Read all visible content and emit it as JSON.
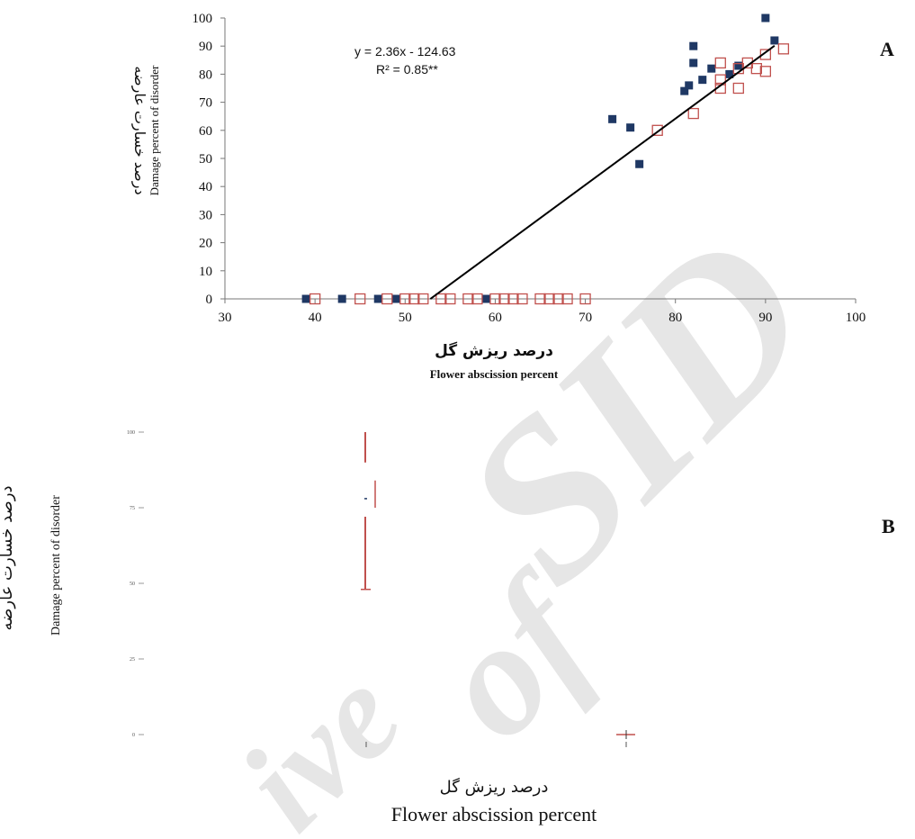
{
  "watermark": {
    "text_sid": "SID",
    "text_of": "of",
    "text_ive": "ive"
  },
  "chart_data": [
    {
      "type": "scatter",
      "panel": "A",
      "title": "",
      "xlabel_fa": "درصد ریزش گل",
      "xlabel_en": "Flower abscission percent",
      "ylabel_fa": "درصد خسارت عارضه",
      "ylabel_en": "Damage percent of disorder",
      "xlim": [
        30,
        100
      ],
      "ylim": [
        0,
        100
      ],
      "xticks": [
        30,
        40,
        50,
        60,
        70,
        80,
        90,
        100
      ],
      "yticks": [
        0,
        10,
        20,
        30,
        40,
        50,
        60,
        70,
        80,
        90,
        100
      ],
      "grid": false,
      "legend": "none",
      "equation": "y = 2.36x - 124.63",
      "r_squared": "R² = 0.85**",
      "trendline": {
        "slope": 2.36,
        "intercept": -124.63,
        "x_start": 52.8,
        "x_end": 91
      },
      "colors": {
        "series1": "#1f3864",
        "series2": "#c0504d",
        "line": "#000000"
      },
      "series": [
        {
          "marker": "filled-square",
          "points": [
            [
              39,
              0
            ],
            [
              43,
              0
            ],
            [
              47,
              0
            ],
            [
              49,
              0
            ],
            [
              59,
              0
            ],
            [
              73,
              64
            ],
            [
              75,
              61
            ],
            [
              76,
              48
            ],
            [
              81,
              74
            ],
            [
              81.5,
              76
            ],
            [
              82,
              84
            ],
            [
              82,
              90
            ],
            [
              83,
              78
            ],
            [
              84,
              82
            ],
            [
              86,
              80
            ],
            [
              87,
              83
            ],
            [
              90,
              100
            ],
            [
              91,
              92
            ]
          ]
        },
        {
          "marker": "open-square",
          "points": [
            [
              40,
              0
            ],
            [
              45,
              0
            ],
            [
              48,
              0
            ],
            [
              50,
              0
            ],
            [
              51,
              0
            ],
            [
              52,
              0
            ],
            [
              54,
              0
            ],
            [
              55,
              0
            ],
            [
              57,
              0
            ],
            [
              58,
              0
            ],
            [
              60,
              0
            ],
            [
              61,
              0
            ],
            [
              62,
              0
            ],
            [
              63,
              0
            ],
            [
              65,
              0
            ],
            [
              66,
              0
            ],
            [
              67,
              0
            ],
            [
              68,
              0
            ],
            [
              70,
              0
            ],
            [
              78,
              60
            ],
            [
              82,
              66
            ],
            [
              85,
              75
            ],
            [
              85,
              78
            ],
            [
              85,
              84
            ],
            [
              87,
              75
            ],
            [
              87,
              82
            ],
            [
              88,
              84
            ],
            [
              89,
              82
            ],
            [
              90,
              81
            ],
            [
              90,
              87
            ],
            [
              92,
              89
            ]
          ]
        }
      ]
    },
    {
      "type": "box",
      "panel": "B",
      "title": "",
      "xlabel_fa": "درصد ریزش گل",
      "xlabel_en": "Flower abscission percent",
      "ylabel_fa": "درصد خسارت عارضه",
      "ylabel_en": "Damage percent of disorder",
      "ylim": [
        0,
        100
      ],
      "yticks": [
        0,
        25,
        50,
        75,
        100
      ],
      "ytick_labels": [
        "0",
        "25",
        "50",
        "75",
        "100"
      ],
      "colors": {
        "whisker": "#c0504d",
        "median": "#1f3864"
      },
      "groups": [
        {
          "min": 48,
          "q1": 75,
          "median": 78,
          "q3": 84,
          "max": 100
        },
        {
          "min": 0,
          "q1": 0,
          "median": 0,
          "q3": 0,
          "max": 0
        }
      ]
    }
  ]
}
